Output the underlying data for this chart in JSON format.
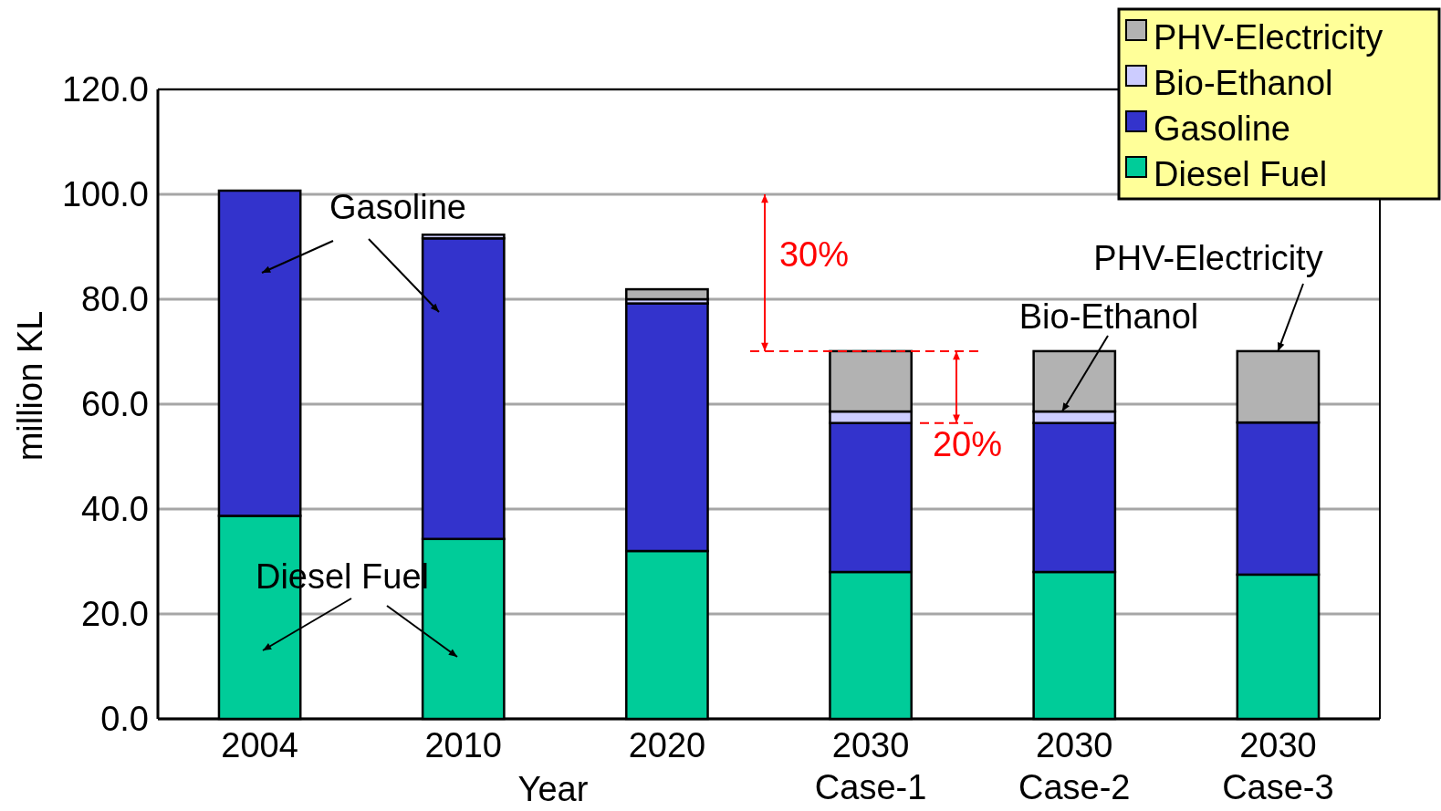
{
  "chart_data": {
    "type": "bar",
    "stacked": true,
    "categories": [
      "2004",
      "2010",
      "2020",
      "2030 Case-1",
      "2030 Case-2",
      "2030 Case-3"
    ],
    "series": [
      {
        "name": "Diesel Fuel",
        "color": "#00cc99",
        "values": [
          38.7,
          34.3,
          32.0,
          28.0,
          28.0,
          27.5
        ]
      },
      {
        "name": "Gasoline",
        "color": "#3333cc",
        "values": [
          62.0,
          57.3,
          47.2,
          28.4,
          28.4,
          29.0
        ]
      },
      {
        "name": "Bio-Ethanol",
        "color": "#ccccff",
        "values": [
          0,
          0.7,
          0.8,
          2.2,
          2.2,
          0
        ]
      },
      {
        "name": "PHV-Electricity",
        "color": "#b2b2b2",
        "values": [
          0,
          0,
          1.9,
          11.5,
          11.5,
          13.6
        ]
      }
    ],
    "xlabel": "Year",
    "ylabel": "million KL",
    "ylim": [
      0,
      120
    ],
    "yticks": [
      {
        "value": 0,
        "label": "0.0"
      },
      {
        "value": 20,
        "label": "20.0"
      },
      {
        "value": 40,
        "label": "40.0"
      },
      {
        "value": 60,
        "label": "60.0"
      },
      {
        "value": 80,
        "label": "80.0"
      },
      {
        "value": 100,
        "label": "100.0"
      },
      {
        "value": 120,
        "label": "120.0"
      }
    ],
    "grid": "y",
    "legend": "top right",
    "annotations": [
      "Gasoline",
      "Diesel Fuel",
      {
        "text": "PHV-Electricity",
        "x": "2030 Case-3",
        "y": 70.1
      },
      {
        "text": "Bio-Ethanol",
        "x": "2030 Case-2",
        "y": 58.6
      },
      "30%",
      "20%"
    ]
  }
}
